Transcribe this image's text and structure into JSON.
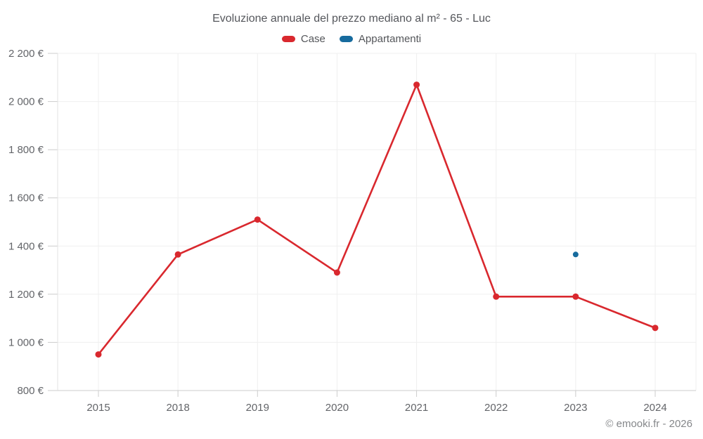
{
  "chart_data": {
    "type": "line",
    "title": "Evoluzione annuale del prezzo mediano al m² - 65 - Luc",
    "categories": [
      "2015",
      "2018",
      "2019",
      "2020",
      "2021",
      "2022",
      "2023",
      "2024"
    ],
    "series": [
      {
        "name": "Case",
        "color": "#d9282e",
        "values": [
          950,
          1365,
          1510,
          1290,
          2070,
          1190,
          1190,
          1060
        ]
      },
      {
        "name": "Appartamenti",
        "color": "#176b9e",
        "values": [
          null,
          null,
          null,
          null,
          null,
          null,
          1365,
          null
        ]
      }
    ],
    "xlabel": "",
    "ylabel": "",
    "ylim": [
      800,
      2200
    ],
    "yticks": [
      800,
      1000,
      1200,
      1400,
      1600,
      1800,
      2000,
      2200
    ],
    "ytick_labels": [
      "800 €",
      "1 000 €",
      "1 200 €",
      "1 400 €",
      "1 600 €",
      "1 800 €",
      "2 000 €",
      "2 200 €"
    ],
    "grid": true,
    "legend_position": "top"
  },
  "footer": {
    "copyright": "© emooki.fr - 2026"
  }
}
